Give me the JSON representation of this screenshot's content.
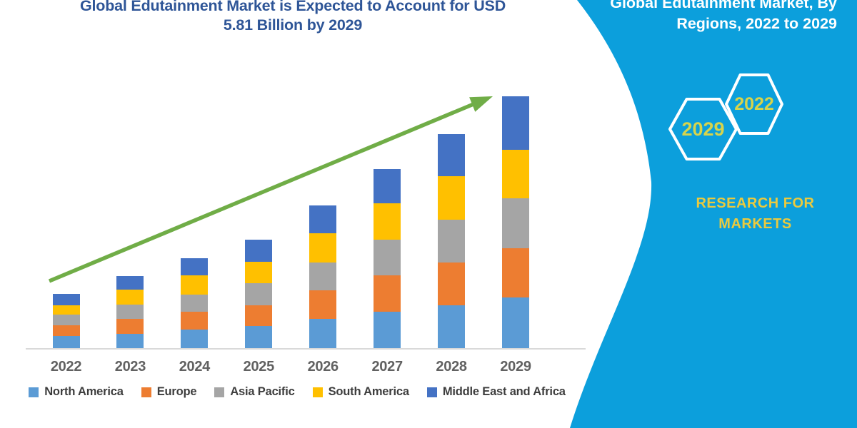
{
  "header": {
    "title_line1": "Global Edutainment Market is Expected to Account for USD",
    "title_line2": "5.81 Billion by 2029"
  },
  "chart_data": {
    "type": "bar",
    "stacked": true,
    "title": "Global Edutainment Market is Expected to Account for USD 5.81 Billion by 2029",
    "unit": "USD Billion",
    "categories": [
      "2022",
      "2023",
      "2024",
      "2025",
      "2026",
      "2027",
      "2028",
      "2029"
    ],
    "series": [
      {
        "name": "North America",
        "color": "#5B9BD5",
        "values": [
          0.28,
          0.33,
          0.43,
          0.51,
          0.67,
          0.84,
          0.99,
          1.17
        ]
      },
      {
        "name": "Europe",
        "color": "#ED7D31",
        "values": [
          0.25,
          0.34,
          0.41,
          0.48,
          0.66,
          0.84,
          0.99,
          1.14
        ]
      },
      {
        "name": "Asia Pacific",
        "color": "#A5A5A5",
        "values": [
          0.24,
          0.33,
          0.4,
          0.51,
          0.64,
          0.82,
          0.99,
          1.15
        ]
      },
      {
        "name": "South America",
        "color": "#FFC000",
        "values": [
          0.22,
          0.35,
          0.44,
          0.49,
          0.69,
          0.84,
          1.0,
          1.12
        ]
      },
      {
        "name": "Middle East and Africa",
        "color": "#4472C4",
        "values": [
          0.26,
          0.31,
          0.4,
          0.51,
          0.64,
          0.8,
          0.98,
          1.23
        ]
      }
    ],
    "totals": [
      1.25,
      1.66,
      2.08,
      2.5,
      3.3,
      4.14,
      4.95,
      5.81
    ],
    "ylim": [
      0,
      6
    ],
    "xlabel": "",
    "ylabel": "",
    "gridlines": false,
    "y_axis_visible": false,
    "legend_position": "bottom",
    "trend_arrow": true,
    "trend_color": "#70AD47"
  },
  "sidebar": {
    "bg_color": "#0C9FDC",
    "heading_line1": "Global Edutainment Market, By",
    "heading_line2": "Regions, 2022 to 2029",
    "hexagons": [
      {
        "label": "2029"
      },
      {
        "label": "2022"
      }
    ],
    "brand_line1": "RESEARCH FOR",
    "brand_line2": "MARKETS",
    "hex_label_color": "#D6D44C",
    "brand_color": "#EBCA3E"
  }
}
